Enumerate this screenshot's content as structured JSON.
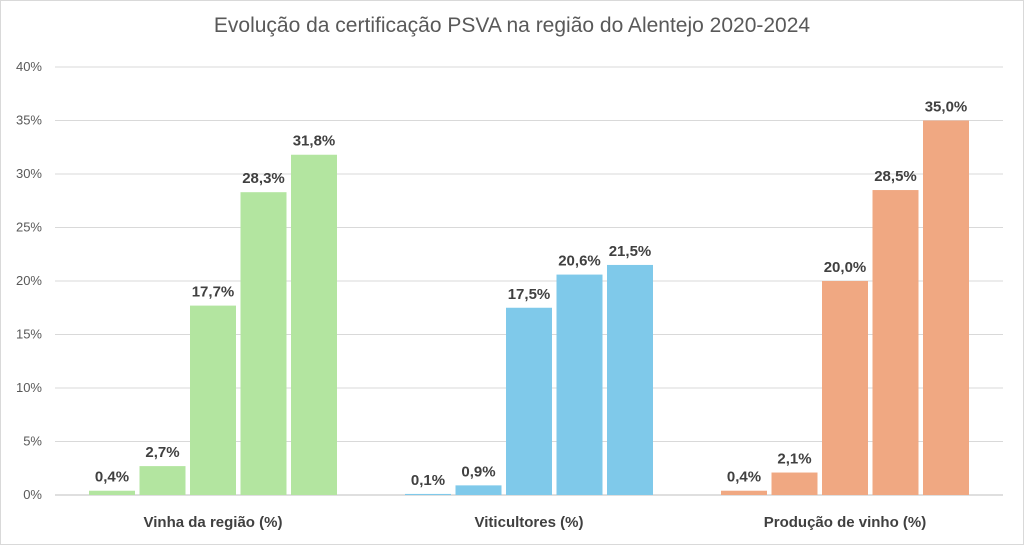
{
  "chart_data": {
    "type": "bar",
    "title": "Evolução da certificação PSVA na região do Alentejo 2020-2024",
    "xlabel": "",
    "ylabel": "",
    "ylim": [
      0,
      40
    ],
    "yticks": [
      "0%",
      "5%",
      "10%",
      "15%",
      "20%",
      "25%",
      "30%",
      "35%",
      "40%"
    ],
    "grid": true,
    "legend": "none",
    "categories": [
      "Vinha da região (%)",
      "Viticultores (%)",
      "Produção de vinho (%)"
    ],
    "groups": [
      {
        "category": "Vinha da região (%)",
        "color": "#b3e5a0",
        "values": [
          0.4,
          2.7,
          17.7,
          28.3,
          31.8
        ],
        "labels": [
          "0,4%",
          "2,7%",
          "17,7%",
          "28,3%",
          "31,8%"
        ]
      },
      {
        "category": "Viticultores (%)",
        "color": "#7fc9ea",
        "values": [
          0.1,
          0.9,
          17.5,
          20.6,
          21.5
        ],
        "labels": [
          "0,1%",
          "0,9%",
          "17,5%",
          "20,6%",
          "21,5%"
        ]
      },
      {
        "category": "Produção de vinho (%)",
        "color": "#f0a882",
        "values": [
          0.4,
          2.1,
          20.0,
          28.5,
          35.0
        ],
        "labels": [
          "0,4%",
          "2,1%",
          "20,0%",
          "28,5%",
          "35,0%"
        ]
      }
    ]
  }
}
